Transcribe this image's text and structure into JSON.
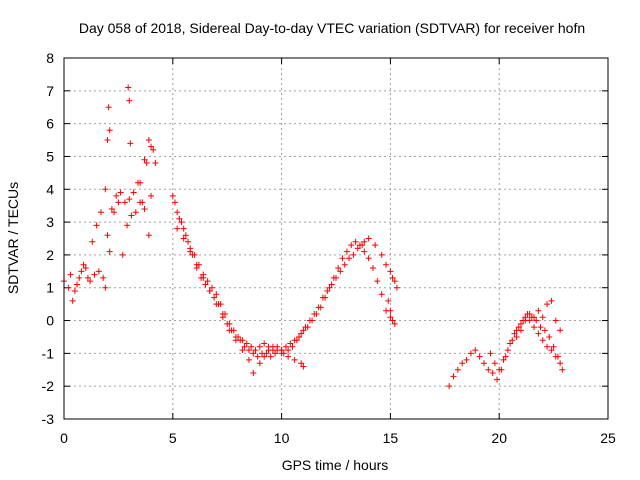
{
  "chart_data": {
    "type": "scatter",
    "title": "Day 058 of 2018, Sidereal Day-to-day VTEC variation (SDTVAR) for receiver hofn",
    "xlabel": "GPS time / hours",
    "ylabel": "SDTVAR / TECUs",
    "xlim": [
      0,
      25
    ],
    "ylim": [
      -3,
      8
    ],
    "x_ticks": [
      0,
      5,
      10,
      15,
      20,
      25
    ],
    "y_ticks": [
      -3,
      -2,
      -1,
      0,
      1,
      2,
      3,
      4,
      5,
      6,
      7,
      8
    ],
    "grid": true,
    "marker": "+",
    "color": "#ff0000",
    "series": [
      {
        "name": "hofn",
        "x": [
          0.0,
          0.2,
          0.4,
          0.6,
          0.8,
          1.0,
          1.2,
          1.4,
          1.6,
          1.8,
          2.0,
          2.2,
          2.4,
          2.6,
          2.8,
          3.0,
          3.2,
          3.4,
          3.6,
          3.8,
          4.0,
          4.2,
          0.3,
          0.5,
          0.7,
          0.9,
          1.1,
          1.3,
          1.5,
          1.7,
          1.9,
          2.1,
          2.3,
          2.5,
          2.7,
          2.9,
          3.1,
          3.3,
          3.5,
          3.7,
          3.9,
          4.1,
          1.9,
          2.0,
          2.05,
          2.1,
          2.95,
          3.0,
          3.05,
          3.5,
          3.7,
          3.9,
          4.0,
          5.0,
          5.2,
          5.4,
          5.6,
          5.8,
          6.0,
          6.2,
          6.4,
          6.6,
          6.8,
          7.0,
          7.2,
          7.4,
          7.6,
          7.8,
          8.0,
          8.2,
          8.4,
          8.6,
          8.8,
          9.0,
          9.2,
          9.4,
          9.6,
          9.8,
          10.0,
          5.1,
          5.3,
          5.5,
          5.7,
          5.9,
          6.1,
          6.3,
          6.5,
          6.7,
          6.9,
          7.1,
          7.3,
          7.5,
          7.7,
          7.9,
          8.1,
          8.3,
          8.5,
          8.7,
          8.9,
          9.1,
          9.3,
          9.5,
          9.7,
          5.2,
          5.5,
          5.8,
          6.1,
          6.4,
          6.7,
          7.0,
          7.3,
          7.6,
          7.9,
          8.2,
          8.5,
          8.7,
          10.0,
          10.2,
          10.4,
          10.6,
          10.8,
          11.0,
          11.2,
          11.4,
          11.6,
          11.8,
          12.0,
          12.2,
          12.4,
          12.6,
          12.8,
          13.0,
          13.2,
          13.4,
          13.6,
          13.8,
          14.0,
          14.2,
          14.4,
          14.6,
          14.8,
          15.0,
          15.2,
          10.1,
          10.3,
          10.5,
          10.7,
          10.9,
          11.1,
          11.3,
          11.5,
          11.7,
          11.9,
          12.1,
          12.3,
          12.5,
          12.7,
          12.9,
          13.1,
          13.3,
          13.5,
          13.7,
          9.0,
          9.2,
          9.4,
          9.6,
          9.8,
          10.0,
          10.3,
          10.6,
          10.9,
          11.0,
          13.8,
          14.0,
          14.3,
          14.6,
          14.8,
          15.0,
          15.1,
          15.2,
          15.3,
          14.9,
          15.0,
          15.1,
          17.7,
          17.9,
          18.1,
          18.3,
          18.5,
          18.7,
          18.9,
          19.1,
          19.3,
          19.5,
          19.7,
          19.9,
          20.1,
          20.3,
          20.5,
          20.7,
          20.9,
          21.1,
          21.3,
          21.5,
          21.7,
          21.9,
          22.1,
          22.3,
          22.5,
          22.7,
          22.9,
          19.6,
          19.8,
          20.0,
          20.2,
          20.4,
          20.6,
          20.8,
          21.0,
          21.2,
          21.4,
          21.6,
          21.8,
          22.0,
          22.2,
          22.4,
          22.6,
          22.8,
          20.8,
          21.0,
          21.2,
          21.4,
          21.6,
          21.8,
          22.0,
          22.2,
          22.4,
          22.6,
          22.8
        ],
        "y": [
          1.2,
          1.0,
          0.6,
          1.1,
          1.5,
          1.6,
          1.2,
          1.4,
          1.5,
          1.3,
          2.6,
          3.4,
          3.8,
          3.9,
          3.6,
          3.7,
          3.9,
          4.2,
          3.6,
          4.8,
          5.3,
          4.8,
          1.4,
          0.9,
          1.3,
          1.7,
          1.3,
          2.4,
          2.9,
          3.3,
          1.0,
          2.1,
          3.3,
          3.6,
          2.0,
          2.9,
          3.2,
          3.3,
          3.6,
          4.9,
          5.5,
          5.2,
          4.0,
          5.5,
          6.5,
          5.8,
          7.1,
          6.7,
          5.4,
          4.2,
          3.4,
          2.6,
          3.8,
          3.8,
          3.3,
          3.0,
          2.6,
          2.2,
          2.0,
          1.7,
          1.4,
          1.2,
          1.0,
          0.8,
          0.5,
          0.2,
          -0.1,
          -0.3,
          -0.5,
          -0.6,
          -0.7,
          -0.8,
          -0.9,
          -0.8,
          -0.7,
          -0.8,
          -0.9,
          -0.8,
          -0.9,
          3.6,
          3.1,
          2.8,
          2.4,
          2.0,
          1.6,
          1.3,
          1.1,
          0.9,
          0.7,
          0.5,
          0.2,
          -0.1,
          -0.3,
          -0.5,
          -0.6,
          -0.8,
          -0.9,
          -1.0,
          -1.1,
          -1.0,
          -1.0,
          -1.1,
          -1.0,
          2.8,
          2.5,
          2.1,
          1.7,
          1.3,
          0.9,
          0.5,
          0.1,
          -0.3,
          -0.6,
          -0.9,
          -1.2,
          -1.6,
          -0.9,
          -0.8,
          -0.7,
          -0.6,
          -0.5,
          -0.3,
          -0.2,
          0.0,
          0.2,
          0.4,
          0.7,
          1.0,
          1.3,
          1.6,
          1.9,
          2.1,
          2.3,
          2.4,
          2.3,
          2.1,
          1.9,
          1.6,
          1.2,
          0.8,
          0.3,
          0.1,
          -0.1,
          -1.0,
          -0.9,
          -0.8,
          -0.6,
          -0.4,
          -0.2,
          0.0,
          0.2,
          0.4,
          0.7,
          0.9,
          1.1,
          1.3,
          1.5,
          1.7,
          1.9,
          2.0,
          2.2,
          2.3,
          -1.3,
          -1.1,
          -0.9,
          -0.8,
          -0.9,
          -1.0,
          -1.1,
          -1.2,
          -1.3,
          -1.4,
          2.4,
          2.5,
          2.3,
          2.0,
          1.7,
          1.5,
          1.3,
          1.2,
          1.0,
          0.6,
          0.3,
          0.0,
          -2.0,
          -1.7,
          -1.5,
          -1.3,
          -1.2,
          -1.0,
          -0.9,
          -1.1,
          -1.3,
          -1.5,
          -1.6,
          -1.8,
          -1.5,
          -1.1,
          -0.7,
          -0.4,
          -0.2,
          0.0,
          0.2,
          0.1,
          0.0,
          -0.2,
          -0.3,
          -0.5,
          -0.8,
          -1.1,
          -1.5,
          -1.0,
          -1.3,
          -1.5,
          -1.2,
          -0.9,
          -0.6,
          -0.3,
          -0.1,
          0.1,
          0.0,
          -0.2,
          -0.4,
          -0.6,
          -0.8,
          -0.9,
          -1.1,
          -1.3,
          -0.5,
          -0.3,
          0.0,
          0.2,
          0.1,
          0.3,
          0.1,
          0.5,
          0.6,
          0.0,
          -0.3
        ]
      }
    ]
  }
}
